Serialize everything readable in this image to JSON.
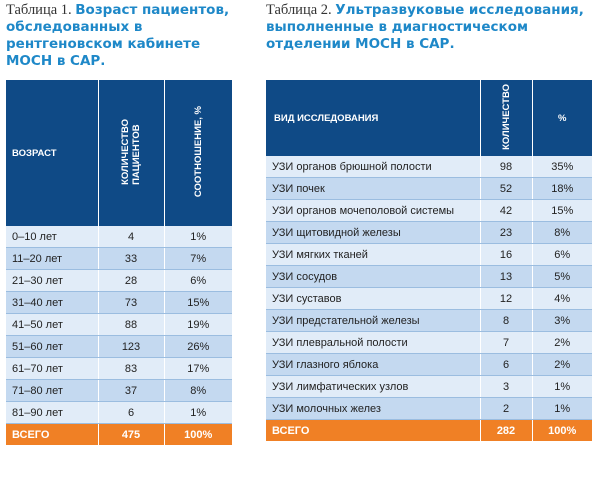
{
  "table1": {
    "caption_lead": "Таблица 1.",
    "caption_bold": "Возраст пациентов, обследованных в рентгеновском кабинете МОСН в САР.",
    "headers": {
      "age": "ВОЗРАСТ",
      "count_line1": "КОЛИЧЕСТВО",
      "count_line2": "ПАЦИЕНТОВ",
      "ratio": "СООТНОШЕНИЕ, %"
    },
    "rows": [
      {
        "age": "0–10 лет",
        "count": "4",
        "ratio": "1%"
      },
      {
        "age": "11–20 лет",
        "count": "33",
        "ratio": "7%"
      },
      {
        "age": "21–30 лет",
        "count": "28",
        "ratio": "6%"
      },
      {
        "age": "31–40 лет",
        "count": "73",
        "ratio": "15%"
      },
      {
        "age": "41–50 лет",
        "count": "88",
        "ratio": "19%"
      },
      {
        "age": "51–60 лет",
        "count": "123",
        "ratio": "26%"
      },
      {
        "age": "61–70 лет",
        "count": "83",
        "ratio": "17%"
      },
      {
        "age": "71–80 лет",
        "count": "37",
        "ratio": "8%"
      },
      {
        "age": "81–90 лет",
        "count": "6",
        "ratio": "1%"
      }
    ],
    "total": {
      "label": "ВСЕГО",
      "count": "475",
      "ratio": "100%"
    }
  },
  "table2": {
    "caption_lead": "Таблица 2.",
    "caption_bold": "Ультразвуковые исследования, выполненные в диагностическом отделении МОСН в САР.",
    "headers": {
      "type": "ВИД ИССЛЕДОВАНИЯ",
      "count": "КОЛИЧЕСТВО",
      "pct": "%"
    },
    "rows": [
      {
        "type": "УЗИ органов брюшной полости",
        "count": "98",
        "pct": "35%"
      },
      {
        "type": "УЗИ почек",
        "count": "52",
        "pct": "18%"
      },
      {
        "type": "УЗИ органов мочеполовой системы",
        "count": "42",
        "pct": "15%"
      },
      {
        "type": "УЗИ щитовидной железы",
        "count": "23",
        "pct": "8%"
      },
      {
        "type": "УЗИ мягких тканей",
        "count": "16",
        "pct": "6%"
      },
      {
        "type": "УЗИ сосудов",
        "count": "13",
        "pct": "5%"
      },
      {
        "type": "УЗИ суставов",
        "count": "12",
        "pct": "4%"
      },
      {
        "type": "УЗИ предстательной железы",
        "count": "8",
        "pct": "3%"
      },
      {
        "type": "УЗИ плевральной полости",
        "count": "7",
        "pct": "2%"
      },
      {
        "type": "УЗИ глазного яблока",
        "count": "6",
        "pct": "2%"
      },
      {
        "type": "УЗИ лимфатических узлов",
        "count": "3",
        "pct": "1%"
      },
      {
        "type": "УЗИ молочных желез",
        "count": "2",
        "pct": "1%"
      }
    ],
    "total": {
      "label": "ВСЕГО",
      "count": "282",
      "pct": "100%"
    }
  },
  "colors": {
    "header_bg": "#0f4a86",
    "row_light": "#e1ecf8",
    "row_dark": "#c4d9f0",
    "total_bg": "#f08025",
    "caption_accent": "#1e88c8"
  }
}
